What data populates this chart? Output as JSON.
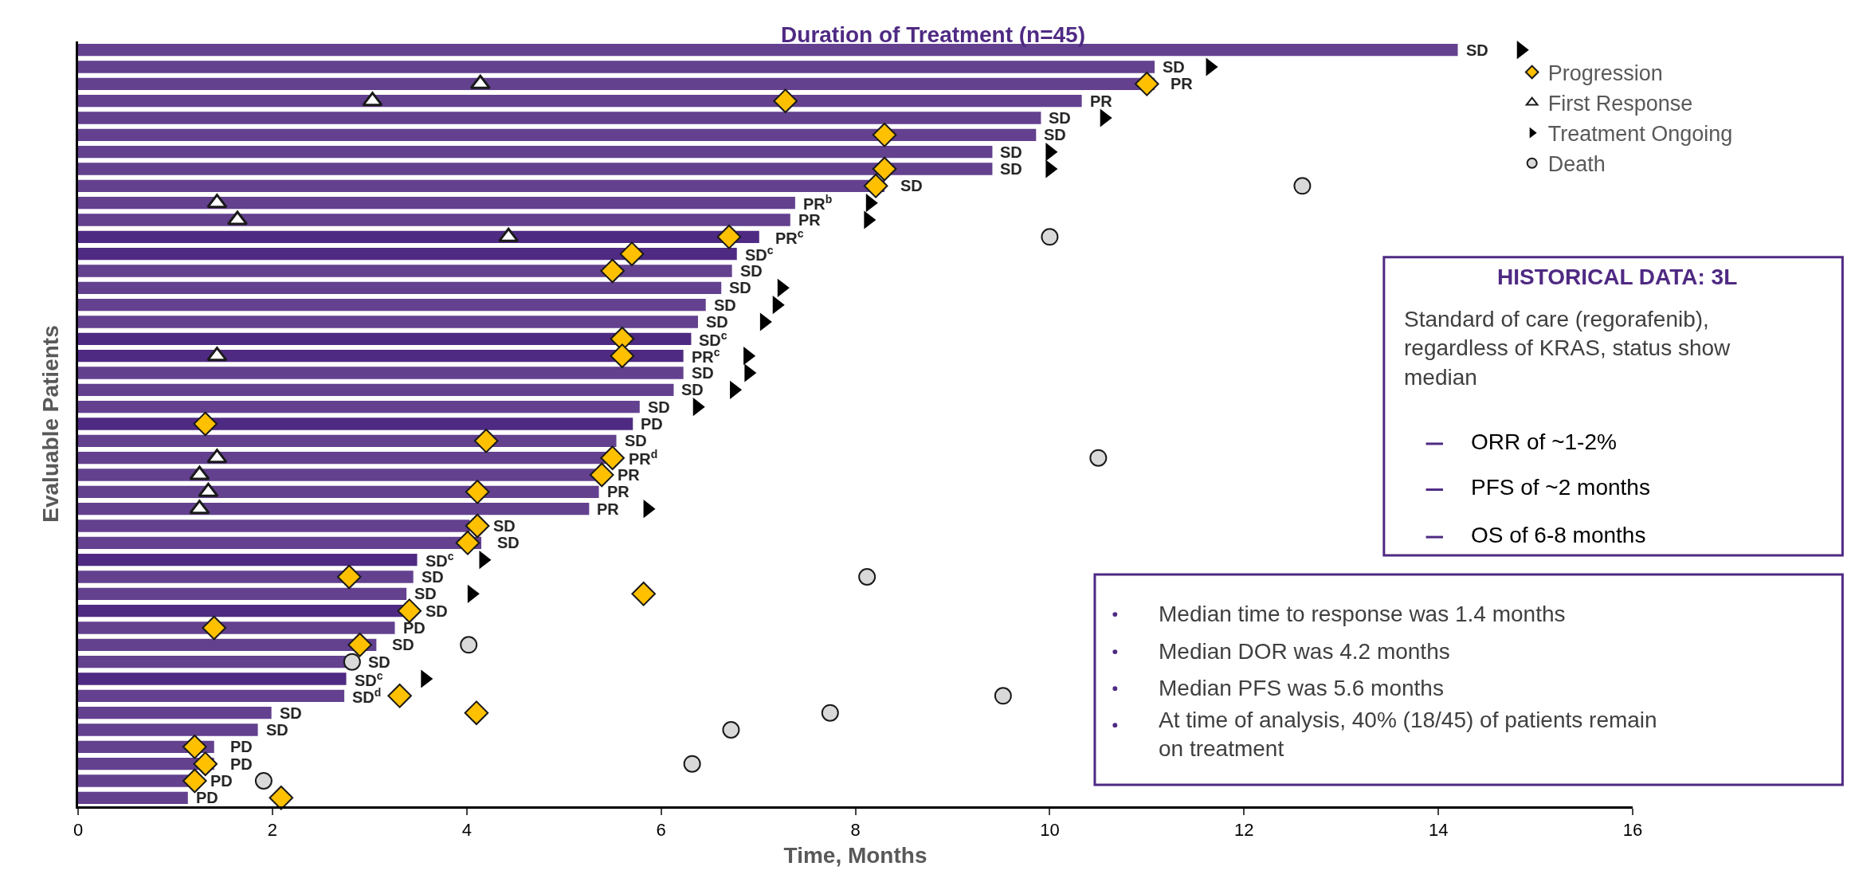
{
  "chart_data": {
    "type": "bar",
    "orientation": "horizontal",
    "title": "Duration of Treatment (n=45)",
    "xlabel": "Time, Months",
    "ylabel": "Evaluable Patients",
    "categories": [
      null,
      null,
      null,
      null,
      null,
      null,
      null,
      null,
      null,
      null,
      null,
      null,
      null,
      null,
      null,
      null,
      null,
      null,
      null,
      null,
      null,
      null,
      null,
      null,
      null,
      null,
      null,
      null,
      null,
      null,
      null,
      null,
      null,
      null,
      null,
      null,
      null,
      null,
      null,
      null,
      null,
      null,
      null,
      null,
      null
    ],
    "xlim": [
      0,
      16
    ],
    "xticks": [
      0,
      2,
      4,
      6,
      8,
      10,
      12,
      14,
      16
    ],
    "tick_labels": "x",
    "grid": false,
    "legend": "top right",
    "series": [
      {
        "colors": [
          "#63418f",
          "#63418f",
          "#63418f",
          "#63418f",
          "#63418f",
          "#63418f",
          "#63418f",
          "#63418f",
          "#63418f",
          "#63418f",
          "#63418f",
          "#4f2a83",
          "#4f2a83",
          "#63418f",
          "#63418f",
          "#63418f",
          "#63418f",
          "#4f2a83",
          "#4f2a83",
          "#63418f",
          "#63418f",
          "#63418f",
          "#4f2a83",
          "#63418f",
          "#63418f",
          "#63418f",
          "#63418f",
          "#63418f",
          "#63418f",
          "#63418f",
          "#4f2a83",
          "#63418f",
          "#63418f",
          "#4f2a83",
          "#63418f",
          "#63418f",
          "#63418f",
          "#4f2a83",
          "#63418f",
          "#63418f",
          "#63418f",
          "#63418f",
          "#63418f",
          "#63418f",
          "#63418f"
        ],
        "values": [
          14.2,
          11.08,
          11.08,
          10.33,
          9.91,
          9.86,
          9.41,
          9.41,
          8.3,
          7.38,
          7.33,
          7.01,
          6.78,
          6.73,
          6.62,
          6.46,
          6.38,
          6.31,
          6.23,
          6.23,
          6.13,
          5.78,
          5.71,
          5.54,
          5.46,
          5.34,
          5.36,
          5.26,
          4.03,
          4.15,
          3.49,
          3.45,
          3.38,
          3.35,
          3.26,
          3.07,
          2.8,
          2.76,
          2.74,
          1.99,
          1.85,
          1.4,
          1.4,
          1.2,
          1.13
        ],
        "value_labels": [
          "SD",
          "SD",
          "PR",
          "PR",
          "SD",
          "SD",
          "SD",
          "SD",
          "SD",
          "PR$^{b}$",
          "PR",
          "PR$^{c}$",
          "SD$^{c}$",
          "SD",
          "SD",
          "SD",
          "SD",
          "SD$^{c}$",
          "PR$^{c}$",
          "SD",
          "SD",
          "SD",
          "PD",
          "SD",
          "PR$^{d}$",
          "PR",
          "PR",
          "PR",
          "SD",
          "SD",
          "SD$^{c}$",
          "SD",
          "SD",
          "SD",
          "PD",
          "SD",
          "SD",
          "SD$^{c}$",
          "SD$^{d}$",
          "SD",
          "SD",
          "PD",
          "PD",
          "PD",
          "PD"
        ]
      },
      {
        "type": "scatter",
        "name": "Progression",
        "marker": "diamond",
        "color": "#ffc000",
        "values": [
          null,
          null,
          11.0,
          7.28,
          null,
          8.3,
          null,
          8.3,
          8.21,
          null,
          null,
          6.7,
          5.7,
          5.5,
          null,
          null,
          null,
          5.6,
          5.6,
          null,
          null,
          null,
          1.31,
          4.2,
          5.5,
          5.39,
          4.11,
          null,
          4.11,
          4.01,
          null,
          2.79,
          5.82,
          3.41,
          1.4,
          2.9,
          null,
          null,
          3.31,
          4.1,
          null,
          1.2,
          1.31,
          1.2,
          2.09
        ]
      },
      {
        "type": "scatter",
        "name": "First Response",
        "marker": "triangle",
        "color": "#ffffff",
        "values": [
          null,
          null,
          4.14,
          3.03,
          null,
          null,
          null,
          null,
          null,
          1.43,
          1.64,
          4.43,
          null,
          null,
          null,
          null,
          null,
          null,
          1.43,
          null,
          null,
          null,
          null,
          null,
          1.43,
          1.25,
          1.34,
          1.25,
          null,
          null,
          null,
          null,
          null,
          null,
          null,
          null,
          null,
          null,
          null,
          null,
          null,
          null,
          null,
          null,
          null
        ]
      },
      {
        "type": "scatter",
        "name": "Treatment Ongoing",
        "color": "#000000",
        "values": [
          14.85,
          11.65,
          null,
          null,
          10.56,
          null,
          10.0,
          10.0,
          null,
          8.15,
          8.13,
          null,
          null,
          null,
          7.24,
          7.19,
          7.06,
          null,
          6.89,
          6.9,
          6.75,
          6.37,
          null,
          null,
          null,
          null,
          null,
          5.86,
          null,
          null,
          4.17,
          null,
          4.05,
          null,
          null,
          null,
          null,
          3.57,
          null,
          null,
          null,
          null,
          null,
          null,
          null
        ]
      },
      {
        "type": "scatter",
        "name": "Death",
        "marker": "circle",
        "color": "#d9d9d9",
        "values": [
          null,
          null,
          null,
          null,
          null,
          null,
          null,
          null,
          12.6,
          null,
          null,
          10.0,
          null,
          null,
          null,
          null,
          null,
          null,
          null,
          null,
          null,
          null,
          null,
          null,
          10.5,
          null,
          null,
          null,
          null,
          null,
          null,
          8.12,
          null,
          null,
          null,
          4.02,
          2.82,
          null,
          9.52,
          7.74,
          6.72,
          null,
          6.32,
          1.91,
          null
        ]
      }
    ],
    "annotations": [
      "HISTORICAL DATA: 3L",
      "Standard of care (regorafenib), regardless of KRAS, status show median",
      "ORR of ~1-2%",
      "PFS of ~2 months",
      "OS of 6-8 months",
      "Median time to response was 1.4 months",
      "Median DOR was 4.2 months",
      "Median PFS was 5.6 months",
      "At time of analysis, 40% (18/45) of patients remain on treatment"
    ]
  }
}
